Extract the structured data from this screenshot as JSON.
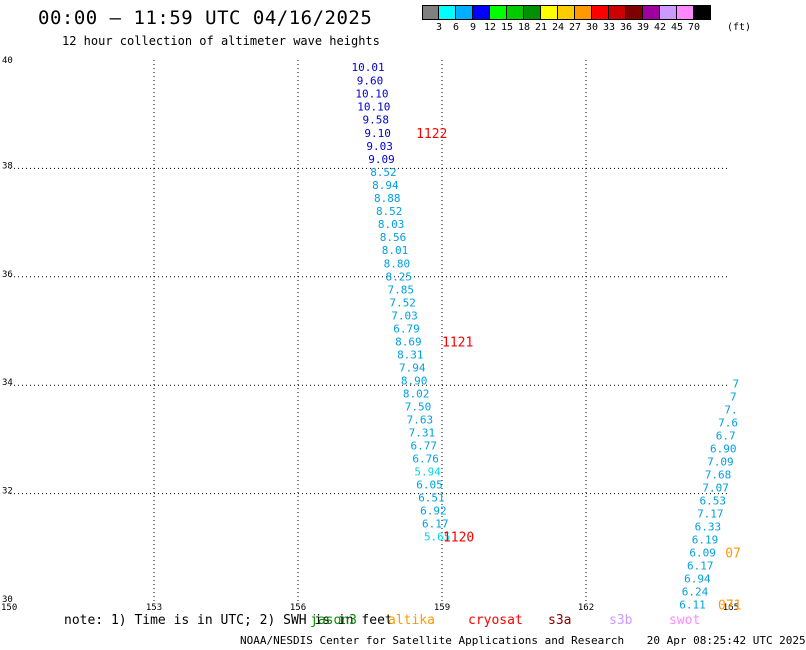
{
  "header": {
    "title": "00:00 – 11:59 UTC 04/16/2025",
    "subtitle": "12 hour collection of altimeter wave heights"
  },
  "legend": {
    "unit": "(ft)",
    "labels": [
      "3",
      "6",
      "9",
      "12",
      "15",
      "18",
      "21",
      "24",
      "27",
      "30",
      "33",
      "36",
      "39",
      "42",
      "45",
      "70"
    ],
    "colors": [
      "#808080",
      "#00ffff",
      "#00b0ff",
      "#0000ff",
      "#00ff00",
      "#00cc00",
      "#009000",
      "#ffff00",
      "#ffcc00",
      "#ff9900",
      "#ff0000",
      "#cc0000",
      "#800000",
      "#a000a0",
      "#cc99ff",
      "#ff88ff",
      "#000000"
    ]
  },
  "axes": {
    "y_ticks": [
      "40",
      "38",
      "36",
      "34",
      "32",
      "30"
    ],
    "x_ticks": [
      "150",
      "153",
      "156",
      "159",
      "162",
      "165"
    ]
  },
  "map_data": {
    "lon_range": [
      150,
      165
    ],
    "lat_range": [
      30,
      40
    ],
    "grid": true,
    "tracks": [
      {
        "points": [
          {
            "lat": 39.87,
            "lon": 157.46,
            "swh": "10.01",
            "color": "#0000cc"
          },
          {
            "lat": 39.62,
            "lon": 157.5,
            "swh": "9.60",
            "color": "#0000cc"
          },
          {
            "lat": 39.38,
            "lon": 157.54,
            "swh": "10.10",
            "color": "#0000cc"
          },
          {
            "lat": 39.14,
            "lon": 157.58,
            "swh": "10.10",
            "color": "#0000cc"
          },
          {
            "lat": 38.9,
            "lon": 157.62,
            "swh": "9.58",
            "color": "#0000cc"
          },
          {
            "lat": 38.65,
            "lon": 157.66,
            "swh": "9.10",
            "color": "#0000cc"
          },
          {
            "lat": 38.41,
            "lon": 157.7,
            "swh": "9.03",
            "color": "#0000cc"
          },
          {
            "lat": 38.17,
            "lon": 157.74,
            "swh": "9.09",
            "color": "#0000cc"
          },
          {
            "lat": 37.93,
            "lon": 157.78,
            "swh": "8.52",
            "color": "#00a0e0"
          },
          {
            "lat": 37.69,
            "lon": 157.82,
            "swh": "8.94",
            "color": "#00a0e0"
          },
          {
            "lat": 37.45,
            "lon": 157.86,
            "swh": "8.88",
            "color": "#00a0e0"
          },
          {
            "lat": 37.21,
            "lon": 157.9,
            "swh": "8.52",
            "color": "#00a0e0"
          },
          {
            "lat": 36.97,
            "lon": 157.94,
            "swh": "8.03",
            "color": "#00a0e0"
          },
          {
            "lat": 36.73,
            "lon": 157.98,
            "swh": "8.56",
            "color": "#00a0e0"
          },
          {
            "lat": 36.49,
            "lon": 158.02,
            "swh": "8.01",
            "color": "#00a0e0"
          },
          {
            "lat": 36.25,
            "lon": 158.06,
            "swh": "8.80",
            "color": "#00a0e0"
          },
          {
            "lat": 36.01,
            "lon": 158.1,
            "swh": "8.25",
            "color": "#00a0e0"
          },
          {
            "lat": 35.77,
            "lon": 158.14,
            "swh": "7.85",
            "color": "#00a0e0"
          },
          {
            "lat": 35.53,
            "lon": 158.18,
            "swh": "7.52",
            "color": "#00a0e0"
          },
          {
            "lat": 35.29,
            "lon": 158.22,
            "swh": "7.03",
            "color": "#00a0e0"
          },
          {
            "lat": 35.05,
            "lon": 158.26,
            "swh": "6.79",
            "color": "#00a0e0"
          },
          {
            "lat": 34.81,
            "lon": 158.3,
            "swh": "8.69",
            "color": "#00a0e0"
          },
          {
            "lat": 34.57,
            "lon": 158.34,
            "swh": "8.31",
            "color": "#00a0e0"
          },
          {
            "lat": 34.33,
            "lon": 158.38,
            "swh": "7.94",
            "color": "#00a0e0"
          },
          {
            "lat": 34.09,
            "lon": 158.42,
            "swh": "8.90",
            "color": "#00a0e0"
          },
          {
            "lat": 33.85,
            "lon": 158.46,
            "swh": "8.02",
            "color": "#00a0e0"
          },
          {
            "lat": 33.61,
            "lon": 158.5,
            "swh": "7.50",
            "color": "#00a0e0"
          },
          {
            "lat": 33.37,
            "lon": 158.54,
            "swh": "7.63",
            "color": "#00a0e0"
          },
          {
            "lat": 33.13,
            "lon": 158.58,
            "swh": "7.31",
            "color": "#00a0e0"
          },
          {
            "lat": 32.89,
            "lon": 158.62,
            "swh": "6.77",
            "color": "#00a0e0"
          },
          {
            "lat": 32.65,
            "lon": 158.66,
            "swh": "6.76",
            "color": "#00a0e0"
          },
          {
            "lat": 32.41,
            "lon": 158.7,
            "swh": "5.94",
            "color": "#00d8e8"
          },
          {
            "lat": 32.17,
            "lon": 158.74,
            "swh": "6.05",
            "color": "#00a0e0"
          },
          {
            "lat": 31.93,
            "lon": 158.78,
            "swh": "6.51",
            "color": "#00a0e0"
          },
          {
            "lat": 31.69,
            "lon": 158.82,
            "swh": "6.92",
            "color": "#00a0e0"
          },
          {
            "lat": 31.45,
            "lon": 158.86,
            "swh": "6.17",
            "color": "#00a0e0"
          },
          {
            "lat": 31.21,
            "lon": 158.9,
            "swh": "5.65",
            "color": "#00d8e8"
          }
        ]
      },
      {
        "points": [
          {
            "lat": 34.03,
            "lon": 165.12,
            "swh": "7",
            "color": "#00a0e0"
          },
          {
            "lat": 33.79,
            "lon": 165.07,
            "swh": "7",
            "color": "#00a0e0"
          },
          {
            "lat": 33.55,
            "lon": 165.02,
            "swh": "7.",
            "color": "#00a0e0"
          },
          {
            "lat": 33.31,
            "lon": 164.96,
            "swh": "7.6",
            "color": "#00a0e0"
          },
          {
            "lat": 33.07,
            "lon": 164.91,
            "swh": "6.7",
            "color": "#00a0e0"
          },
          {
            "lat": 32.83,
            "lon": 164.86,
            "swh": "6.90",
            "color": "#00a0e0"
          },
          {
            "lat": 32.59,
            "lon": 164.8,
            "swh": "7.09",
            "color": "#00a0e0"
          },
          {
            "lat": 32.35,
            "lon": 164.75,
            "swh": "7.68",
            "color": "#00a0e0"
          },
          {
            "lat": 32.11,
            "lon": 164.7,
            "swh": "7.07",
            "color": "#00a0e0"
          },
          {
            "lat": 31.87,
            "lon": 164.64,
            "swh": "6.53",
            "color": "#00a0e0"
          },
          {
            "lat": 31.63,
            "lon": 164.59,
            "swh": "7.17",
            "color": "#00a0e0"
          },
          {
            "lat": 31.39,
            "lon": 164.54,
            "swh": "6.33",
            "color": "#00a0e0"
          },
          {
            "lat": 31.15,
            "lon": 164.48,
            "swh": "6.19",
            "color": "#00a0e0"
          },
          {
            "lat": 30.91,
            "lon": 164.43,
            "swh": "6.09",
            "color": "#00a0e0"
          },
          {
            "lat": 30.67,
            "lon": 164.38,
            "swh": "6.17",
            "color": "#00a0e0"
          },
          {
            "lat": 30.43,
            "lon": 164.32,
            "swh": "6.94",
            "color": "#00a0e0"
          },
          {
            "lat": 30.19,
            "lon": 164.27,
            "swh": "6.24",
            "color": "#00a0e0"
          },
          {
            "lat": 29.95,
            "lon": 164.22,
            "swh": "6.11",
            "color": "#00a0e0"
          }
        ]
      }
    ],
    "time_labels": [
      {
        "text": "1122",
        "lat": 38.65,
        "lon": 158.46,
        "color": "#ff0000"
      },
      {
        "text": "1121",
        "lat": 34.81,
        "lon": 159.0,
        "color": "#ff0000"
      },
      {
        "text": "1120",
        "lat": 31.21,
        "lon": 159.02,
        "color": "#ff0000"
      },
      {
        "text": "07",
        "lat": 30.91,
        "lon": 164.9,
        "color": "#ff9900"
      },
      {
        "text": "071",
        "lat": 29.95,
        "lon": 164.75,
        "color": "#ff9900"
      }
    ]
  },
  "note": {
    "text": "note: 1) Time is in UTC; 2) SWH is in feet"
  },
  "satellites": [
    {
      "name": "jason3",
      "color": "#009000"
    },
    {
      "name": "altika",
      "color": "#ff9900"
    },
    {
      "name": "cryosat",
      "color": "#ff0000"
    },
    {
      "name": "s3a",
      "color": "#800000"
    },
    {
      "name": "s3b",
      "color": "#cc99ff"
    },
    {
      "name": "swot",
      "color": "#ff88ff"
    }
  ],
  "footer": {
    "credit": "NOAA/NESDIS Center for Satellite Applications and Research",
    "timestamp": "20 Apr 08:25:42 UTC 2025"
  }
}
